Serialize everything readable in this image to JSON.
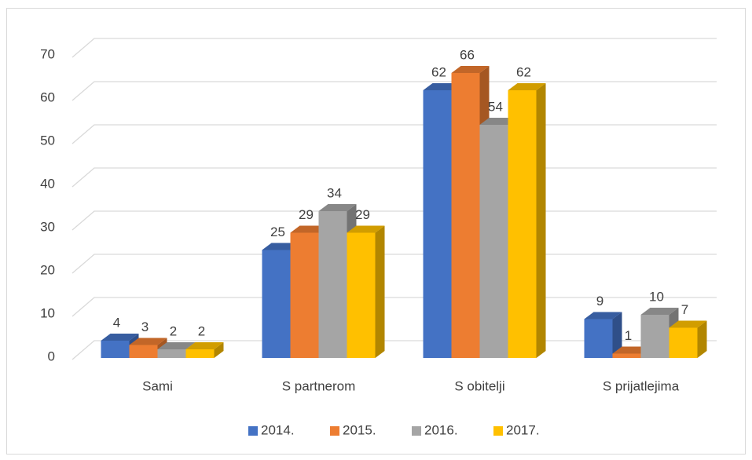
{
  "chart_data": {
    "type": "bar3d",
    "categories": [
      "Sami",
      "S partnerom",
      "S obitelji",
      "S prijatlejima"
    ],
    "series": [
      {
        "name": "2014.",
        "color": "#4472c4",
        "values": [
          4,
          25,
          62,
          9
        ]
      },
      {
        "name": "2015.",
        "color": "#ed7d31",
        "values": [
          3,
          29,
          66,
          1
        ]
      },
      {
        "name": "2016.",
        "color": "#a5a5a5",
        "values": [
          2,
          34,
          54,
          10
        ]
      },
      {
        "name": "2017.",
        "color": "#ffc000",
        "values": [
          2,
          29,
          62,
          7
        ]
      }
    ],
    "ylim": [
      0,
      70
    ],
    "yticks": [
      0,
      10,
      20,
      30,
      40,
      50,
      60,
      70
    ],
    "grid": true,
    "legend": "bottom"
  }
}
